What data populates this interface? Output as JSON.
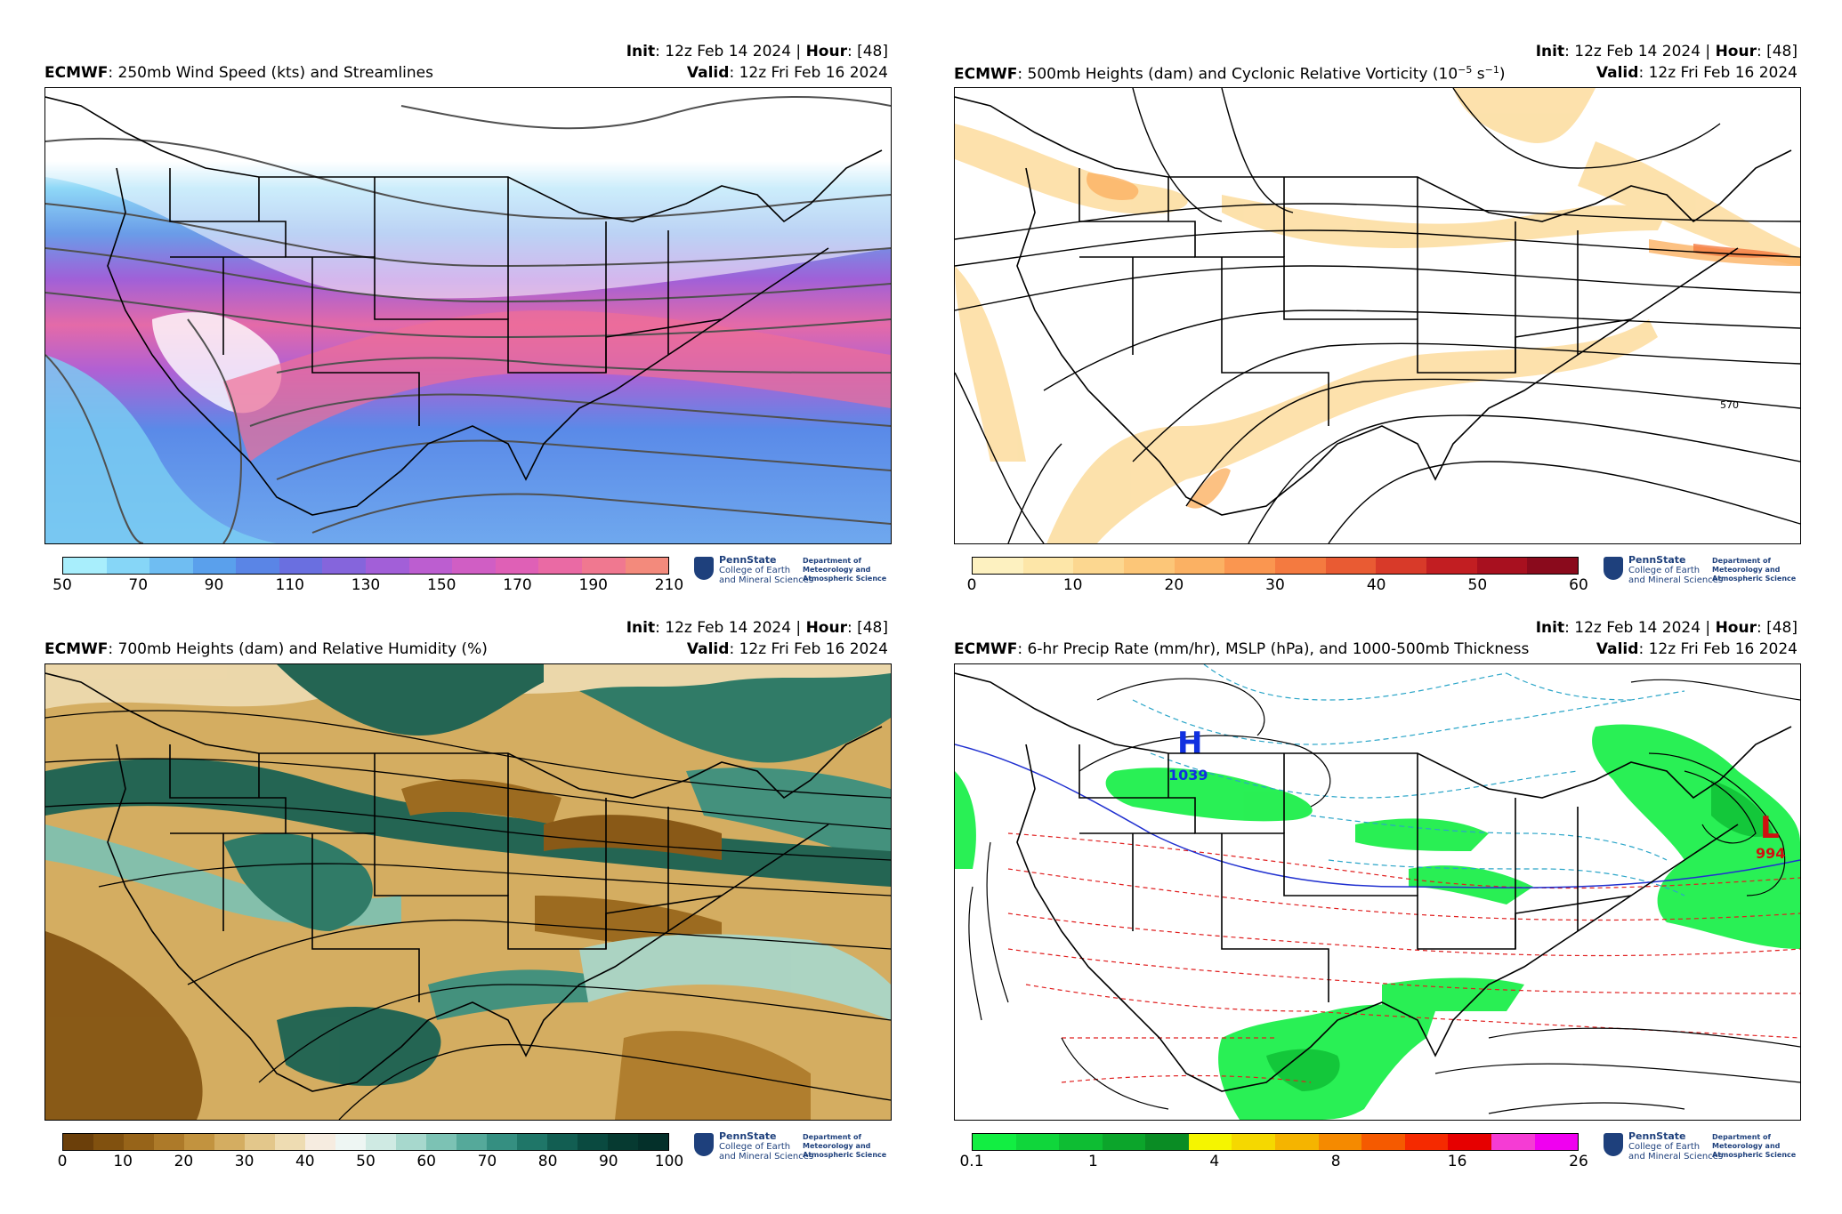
{
  "panels": [
    {
      "init_label": "Init",
      "init_value": ": 12z Feb 14 2024 | ",
      "hour_label": "Hour",
      "hour_value": ": [48]",
      "model": "ECMWF",
      "title": ": 250mb Wind Speed (kts) and Streamlines",
      "valid_label": "Valid",
      "valid_value": ": 12z Fri Feb 16 2024",
      "colorbar_ticks": [
        "50",
        "70",
        "90",
        "110",
        "130",
        "150",
        "170",
        "190",
        "210"
      ],
      "colorbar_colors": [
        "#a8eefc",
        "#86d6f7",
        "#6fbdf2",
        "#5aa0ec",
        "#5a85e6",
        "#6a6fe0",
        "#8565dc",
        "#a25fd8",
        "#bc5ed0",
        "#d05ec4",
        "#df60b6",
        "#ea6aa4",
        "#f07890",
        "#f38a7c"
      ]
    },
    {
      "init_label": "Init",
      "init_value": ": 12z Feb 14 2024 | ",
      "hour_label": "Hour",
      "hour_value": ": [48]",
      "model": "ECMWF",
      "title": ": 500mb Heights (dam) and Cyclonic Relative Vorticity (10",
      "title_sup": "−5",
      "title_end": " s",
      "title_sup2": "−1",
      "title_close": ")",
      "valid_label": "Valid",
      "valid_value": ": 12z Fri Feb 16 2024",
      "contour_label": "570",
      "colorbar_ticks": [
        "0",
        "10",
        "20",
        "30",
        "40",
        "50",
        "60"
      ],
      "colorbar_colors": [
        "#fdf1c0",
        "#fde6a8",
        "#fcd790",
        "#fcc678",
        "#fbb163",
        "#fa9650",
        "#f47a40",
        "#e95b33",
        "#d83a29",
        "#c21e22",
        "#a8101f",
        "#8a0a1c"
      ]
    },
    {
      "init_label": "Init",
      "init_value": ": 12z Feb 14 2024 | ",
      "hour_label": "Hour",
      "hour_value": ": [48]",
      "model": "ECMWF",
      "title": ": 700mb Heights (dam) and Relative Humidity (%)",
      "valid_label": "Valid",
      "valid_value": ": 12z Fri Feb 16 2024",
      "colorbar_ticks": [
        "0",
        "10",
        "20",
        "30",
        "40",
        "50",
        "60",
        "70",
        "80",
        "90",
        "100"
      ],
      "colorbar_colors": [
        "#6b3f0a",
        "#81510f",
        "#976419",
        "#ad7a29",
        "#c2933f",
        "#d4ad61",
        "#e3c78b",
        "#eedcb2",
        "#f6ece0",
        "#eef6f3",
        "#cfeae3",
        "#a7d8cd",
        "#7cc2b4",
        "#55a99a",
        "#358f81",
        "#1f7668",
        "#125e52",
        "#0a4a40",
        "#063a31",
        "#04302a"
      ]
    },
    {
      "init_label": "Init",
      "init_value": ": 12z Feb 14 2024 | ",
      "hour_label": "Hour",
      "hour_value": ": [48]",
      "model": "ECMWF",
      "title": ": 6-hr Precip Rate (mm/hr), MSLP (hPa), and 1000-500mb Thickness",
      "valid_label": "Valid",
      "valid_value": ": 12z Fri Feb 16 2024",
      "high_letter": "H",
      "high_value": "1039",
      "low_letter": "L",
      "low_value": "994",
      "colorbar_ticks": [
        "0.1",
        "1",
        "4",
        "8",
        "16",
        "26"
      ],
      "colorbar_colors": [
        "#12ee42",
        "#10d63b",
        "#0ebd33",
        "#0ca52b",
        "#0a8c24",
        "#f5f500",
        "#f5d800",
        "#f5b400",
        "#f58a00",
        "#f55a00",
        "#f52a00",
        "#e60000",
        "#f53cd4",
        "#f000f0"
      ]
    }
  ],
  "logo": {
    "university": "PennState",
    "college_line1": "College of Earth",
    "college_line2": "and Mineral Sciences",
    "dept_line1": "Department of",
    "dept_line2": "Meteorology and",
    "dept_line3": "Atmospheric Science"
  }
}
